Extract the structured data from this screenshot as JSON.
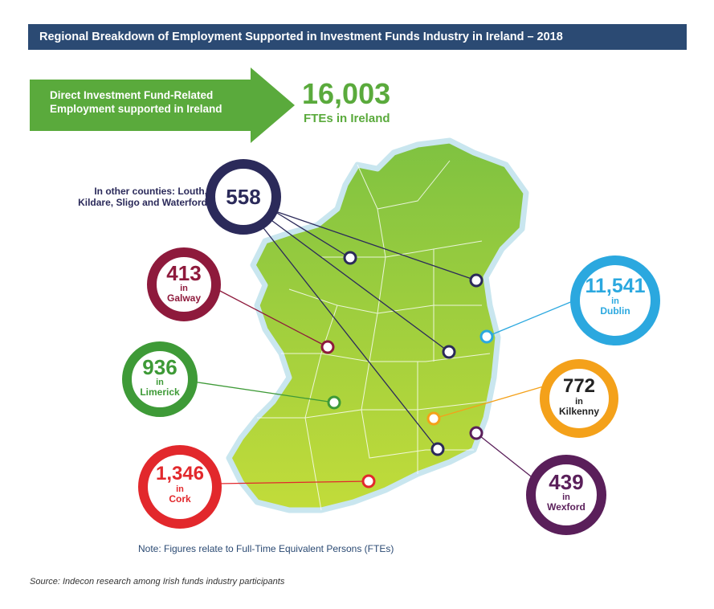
{
  "title": "Regional Breakdown of Employment Supported in Investment Funds Industry in Ireland – 2018",
  "headline": {
    "arrow_text": "Direct Investment Fund-Related Employment supported in Ireland",
    "total": "16,003",
    "total_label": "FTEs in Ireland"
  },
  "other_counties_label": "In other counties: Louth, Kildare, Sligo and Waterford",
  "bubbles": {
    "other": {
      "value": "558",
      "color": "#2b2a5a"
    },
    "galway": {
      "value": "413",
      "in": "in",
      "place": "Galway",
      "color": "#8e1a3c"
    },
    "limerick": {
      "value": "936",
      "in": "in",
      "place": "Limerick",
      "color": "#3e9a37"
    },
    "cork": {
      "value": "1,346",
      "in": "in",
      "place": "Cork",
      "color": "#e2282c"
    },
    "dublin": {
      "value": "11,541",
      "in": "in",
      "place": "Dublin",
      "color": "#2ba8df"
    },
    "kilkenny": {
      "value": "772",
      "in": "in",
      "place": "Kilkenny",
      "color": "#f4a11a"
    },
    "wexford": {
      "value": "439",
      "in": "in",
      "place": "Wexford",
      "color": "#5a1f5a"
    }
  },
  "colors": {
    "title_bar": "#2b4a73",
    "arrow": "#5aaa3c",
    "map_fill": "#8cc63f",
    "map_edge": "#c9e6ef"
  },
  "note": "Note: Figures relate to Full-Time Equivalent Persons (FTEs)",
  "source": "Source: Indecon research among Irish funds industry participants"
}
